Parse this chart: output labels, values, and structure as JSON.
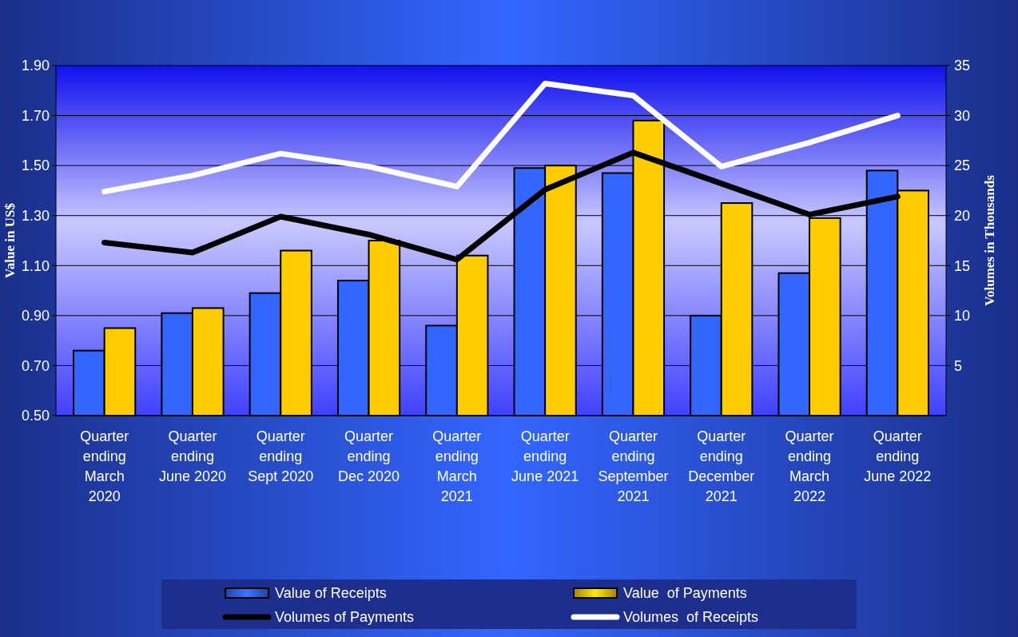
{
  "chart_data": {
    "type": "bar",
    "ylabel": "Value in US$",
    "y2label": "Volumes in Thousands",
    "categories": [
      "Quarter\nending\nMarch\n2020",
      "Quarter\nending\nJune 2020",
      "Quarter\nending\nSept 2020",
      "Quarter\nending\nDec 2020",
      "Quarter\nending\nMarch\n2021",
      "Quarter\nending\nJune 2021",
      "Quarter\nending\nSeptember\n2021",
      "Quarter\nending\nDecember\n2021",
      "Quarter\nending\nMarch\n2022",
      "Quarter\nending\nJune 2022"
    ],
    "series": [
      {
        "name": "Value of Receipts",
        "color": "#3366ff",
        "values": [
          0.76,
          0.91,
          0.99,
          1.04,
          0.86,
          1.49,
          1.47,
          0.9,
          1.07,
          1.48
        ]
      },
      {
        "name": "Value  of Payments",
        "color": "#ffcc00",
        "values": [
          0.85,
          0.93,
          1.16,
          1.2,
          1.14,
          1.5,
          1.68,
          1.35,
          1.29,
          1.4
        ]
      },
      {
        "name": "Volumes of Payments",
        "type": "line",
        "axis": "y2",
        "color": "#000000",
        "values": [
          17.3,
          16.3,
          19.9,
          18.1,
          15.6,
          22.6,
          26.3,
          23.2,
          20.1,
          21.9
        ]
      },
      {
        "name": "Volumes  of Receipts",
        "type": "line",
        "axis": "y2",
        "color": "#ffffff",
        "values": [
          22.4,
          24.0,
          26.2,
          24.9,
          22.9,
          33.2,
          32.0,
          24.9,
          27.3,
          30.0
        ]
      }
    ],
    "ylim": [
      0.5,
      1.9
    ],
    "yticks": [
      {
        "value": 0.5,
        "label": "0.50"
      },
      {
        "value": 0.7,
        "label": "0.70"
      },
      {
        "value": 0.9,
        "label": "0.90"
      },
      {
        "value": 1.1,
        "label": "1.10"
      },
      {
        "value": 1.3,
        "label": "1.30"
      },
      {
        "value": 1.5,
        "label": "1.50"
      },
      {
        "value": 1.7,
        "label": "1.70"
      },
      {
        "value": 1.9,
        "label": "1.90"
      }
    ],
    "y2lim": [
      0,
      35
    ],
    "y2ticks": [
      5,
      10,
      15,
      20,
      25,
      30,
      35
    ],
    "grid": "y",
    "legend": "bottom",
    "marker": "none",
    "line_style": "solid"
  }
}
